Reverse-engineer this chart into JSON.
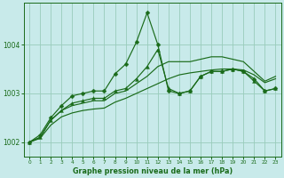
{
  "background_color": "#c8eaea",
  "grid_color": "#99ccbb",
  "line_color": "#1a6b1a",
  "xlabel": "Graphe pression niveau de la mer (hPa)",
  "xlim": [
    -0.5,
    23.5
  ],
  "ylim": [
    1001.7,
    1004.85
  ],
  "yticks": [
    1002,
    1003,
    1004
  ],
  "xticks": [
    0,
    1,
    2,
    3,
    4,
    5,
    6,
    7,
    8,
    9,
    10,
    11,
    12,
    13,
    14,
    15,
    16,
    17,
    18,
    19,
    20,
    21,
    22,
    23
  ],
  "series1_diamond": {
    "x": [
      0,
      1,
      2,
      3,
      4,
      5,
      6,
      7,
      8,
      9,
      10,
      11,
      12,
      13,
      14,
      15,
      16,
      17,
      18,
      19,
      20,
      21,
      22,
      23
    ],
    "y": [
      1002.0,
      1002.15,
      1002.5,
      1002.75,
      1002.95,
      1003.0,
      1003.05,
      1003.05,
      1003.4,
      1003.6,
      1004.05,
      1004.65,
      1004.0,
      1003.05,
      1003.0,
      1003.05,
      1003.35,
      1003.45,
      1003.45,
      1003.5,
      1003.45,
      1003.3,
      1003.05,
      1003.1
    ]
  },
  "series2_triangle": {
    "x": [
      0,
      1,
      2,
      3,
      4,
      5,
      6,
      7,
      8,
      9,
      10,
      11,
      12,
      13,
      14,
      15,
      16,
      17,
      18,
      19,
      20,
      21,
      22,
      23
    ],
    "y": [
      1002.0,
      1002.1,
      1002.45,
      1002.65,
      1002.8,
      1002.85,
      1002.9,
      1002.9,
      1003.05,
      1003.1,
      1003.3,
      1003.55,
      1003.9,
      1003.1,
      1003.0,
      1003.05,
      1003.35,
      1003.45,
      1003.45,
      1003.5,
      1003.45,
      1003.25,
      1003.05,
      1003.1
    ]
  },
  "series3_smooth_high": {
    "x": [
      0,
      1,
      2,
      3,
      4,
      5,
      6,
      7,
      8,
      9,
      10,
      11,
      12,
      13,
      14,
      15,
      16,
      17,
      18,
      19,
      20,
      21,
      22,
      23
    ],
    "y": [
      1002.0,
      1002.1,
      1002.45,
      1002.65,
      1002.75,
      1002.8,
      1002.85,
      1002.85,
      1003.0,
      1003.05,
      1003.2,
      1003.35,
      1003.55,
      1003.65,
      1003.65,
      1003.65,
      1003.7,
      1003.75,
      1003.75,
      1003.7,
      1003.65,
      1003.45,
      1003.25,
      1003.35
    ]
  },
  "series4_smooth_low": {
    "x": [
      0,
      1,
      2,
      3,
      4,
      5,
      6,
      7,
      8,
      9,
      10,
      11,
      12,
      13,
      14,
      15,
      16,
      17,
      18,
      19,
      20,
      21,
      22,
      23
    ],
    "y": [
      1002.0,
      1002.08,
      1002.35,
      1002.52,
      1002.6,
      1002.65,
      1002.68,
      1002.7,
      1002.82,
      1002.9,
      1003.0,
      1003.1,
      1003.2,
      1003.3,
      1003.38,
      1003.42,
      1003.45,
      1003.48,
      1003.5,
      1003.5,
      1003.48,
      1003.38,
      1003.22,
      1003.3
    ]
  }
}
